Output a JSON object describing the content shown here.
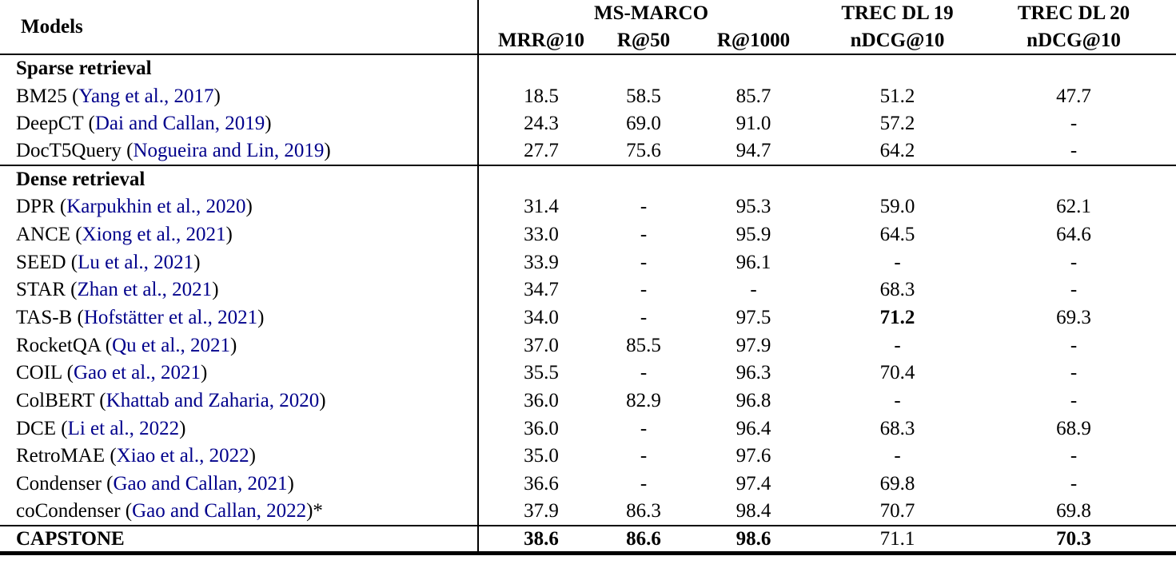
{
  "colors": {
    "citation_blue": "#00008B",
    "rule_black": "#000000",
    "background": "#ffffff"
  },
  "table": {
    "models_header": "Models",
    "column_groups": [
      {
        "label": "MS-MARCO",
        "sub": [
          "MRR@10",
          "R@50",
          "R@1000"
        ]
      },
      {
        "label": "TREC DL 19",
        "sub": [
          "nDCG@10"
        ]
      },
      {
        "label": "TREC DL 20",
        "sub": [
          "nDCG@10"
        ]
      }
    ],
    "sections": [
      {
        "label": "Sparse retrieval",
        "rows": [
          {
            "model": "BM25",
            "citation": "Yang et al., 2017",
            "suffix": "",
            "values": [
              "18.5",
              "58.5",
              "85.7",
              "51.2",
              "47.7"
            ],
            "bold_values": [
              false,
              false,
              false,
              false,
              false
            ]
          },
          {
            "model": "DeepCT",
            "citation": "Dai and Callan, 2019",
            "suffix": "",
            "values": [
              "24.3",
              "69.0",
              "91.0",
              "57.2",
              "-"
            ],
            "bold_values": [
              false,
              false,
              false,
              false,
              false
            ]
          },
          {
            "model": "DocT5Query",
            "citation": "Nogueira and Lin, 2019",
            "suffix": "",
            "values": [
              "27.7",
              "75.6",
              "94.7",
              "64.2",
              "-"
            ],
            "bold_values": [
              false,
              false,
              false,
              false,
              false
            ]
          }
        ]
      },
      {
        "label": "Dense retrieval",
        "rows": [
          {
            "model": "DPR",
            "citation": "Karpukhin et al., 2020",
            "suffix": "",
            "values": [
              "31.4",
              "-",
              "95.3",
              "59.0",
              "62.1"
            ],
            "bold_values": [
              false,
              false,
              false,
              false,
              false
            ]
          },
          {
            "model": "ANCE",
            "citation": "Xiong et al., 2021",
            "suffix": "",
            "values": [
              "33.0",
              "-",
              "95.9",
              "64.5",
              "64.6"
            ],
            "bold_values": [
              false,
              false,
              false,
              false,
              false
            ]
          },
          {
            "model": "SEED",
            "citation": "Lu et al., 2021",
            "suffix": "",
            "values": [
              "33.9",
              "-",
              "96.1",
              "-",
              "-"
            ],
            "bold_values": [
              false,
              false,
              false,
              false,
              false
            ]
          },
          {
            "model": "STAR",
            "citation": "Zhan et al., 2021",
            "suffix": "",
            "values": [
              "34.7",
              "-",
              "-",
              "68.3",
              "-"
            ],
            "bold_values": [
              false,
              false,
              false,
              false,
              false
            ]
          },
          {
            "model": "TAS-B",
            "citation": "Hofstätter et al., 2021",
            "suffix": "",
            "values": [
              "34.0",
              "-",
              "97.5",
              "71.2",
              "69.3"
            ],
            "bold_values": [
              false,
              false,
              false,
              true,
              false
            ]
          },
          {
            "model": "RocketQA",
            "citation": "Qu et al., 2021",
            "suffix": "",
            "values": [
              "37.0",
              "85.5",
              "97.9",
              "-",
              "-"
            ],
            "bold_values": [
              false,
              false,
              false,
              false,
              false
            ]
          },
          {
            "model": "COIL",
            "citation": "Gao et al., 2021",
            "suffix": "",
            "values": [
              "35.5",
              "-",
              "96.3",
              "70.4",
              "-"
            ],
            "bold_values": [
              false,
              false,
              false,
              false,
              false
            ]
          },
          {
            "model": "ColBERT",
            "citation": "Khattab and Zaharia, 2020",
            "suffix": "",
            "values": [
              "36.0",
              "82.9",
              "96.8",
              "-",
              "-"
            ],
            "bold_values": [
              false,
              false,
              false,
              false,
              false
            ]
          },
          {
            "model": "DCE",
            "citation": "Li et al., 2022",
            "suffix": "",
            "values": [
              "36.0",
              "-",
              "96.4",
              "68.3",
              "68.9"
            ],
            "bold_values": [
              false,
              false,
              false,
              false,
              false
            ]
          },
          {
            "model": "RetroMAE",
            "citation": "Xiao et al., 2022",
            "suffix": "",
            "values": [
              "35.0",
              "-",
              "97.6",
              "-",
              "-"
            ],
            "bold_values": [
              false,
              false,
              false,
              false,
              false
            ]
          },
          {
            "model": "Condenser",
            "citation": "Gao and Callan, 2021",
            "suffix": "",
            "values": [
              "36.6",
              "-",
              "97.4",
              "69.8",
              "-"
            ],
            "bold_values": [
              false,
              false,
              false,
              false,
              false
            ]
          },
          {
            "model": "coCondenser",
            "citation": "Gao and Callan, 2022",
            "suffix": "*",
            "values": [
              "37.9",
              "86.3",
              "98.4",
              "70.7",
              "69.8"
            ],
            "bold_values": [
              false,
              false,
              false,
              false,
              false
            ]
          }
        ]
      },
      {
        "label": null,
        "rows": [
          {
            "model": "CAPSTONE",
            "citation": null,
            "suffix": "",
            "bold_model": true,
            "values": [
              "38.6",
              "86.6",
              "98.6",
              "71.1",
              "70.3"
            ],
            "bold_values": [
              true,
              true,
              true,
              false,
              true
            ]
          }
        ]
      }
    ]
  }
}
